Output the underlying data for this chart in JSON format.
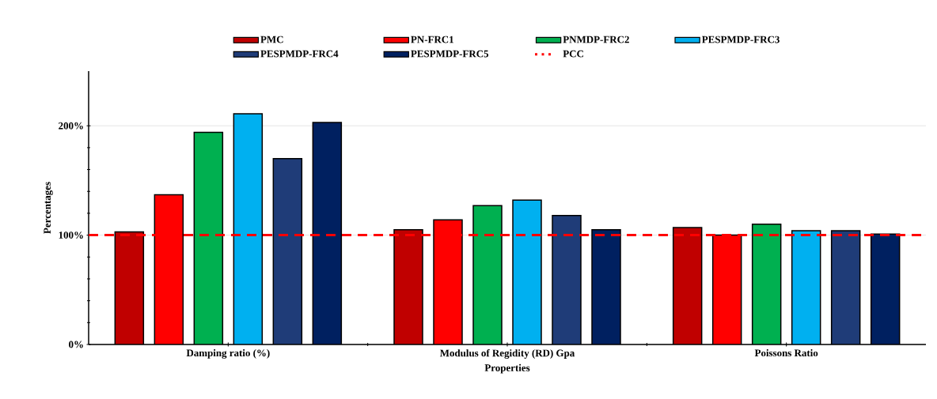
{
  "chart_data": {
    "type": "bar",
    "xlabel": "Properties",
    "ylabel": "Percentages",
    "categories": [
      "Damping ratio (%)",
      "Modulus of Regidity (RD) Gpa",
      "Poissons Ratio"
    ],
    "series": [
      {
        "name": "PMC",
        "color": "#c00000",
        "values": [
          103,
          105,
          107
        ]
      },
      {
        "name": "PN-FRC1",
        "color": "#ff0000",
        "values": [
          137,
          114,
          100
        ]
      },
      {
        "name": "PNMDP-FRC2",
        "color": "#00b050",
        "values": [
          194,
          127,
          110
        ]
      },
      {
        "name": "PESPMDP-FRC3",
        "color": "#00b0f0",
        "values": [
          211,
          132,
          104
        ]
      },
      {
        "name": "PESPMDP-FRC4",
        "color": "#1f3c78",
        "values": [
          170,
          118,
          104
        ]
      },
      {
        "name": "PESPMDP-FRC5",
        "color": "#002060",
        "values": [
          203,
          105,
          101
        ]
      }
    ],
    "ref_lines": [
      {
        "axis": "y",
        "value": 100,
        "label": "PCC",
        "color": "#ff0000",
        "line_style": "dashed"
      }
    ],
    "ylim": [
      0,
      250
    ],
    "yticks": [
      {
        "value": 0,
        "label": "0%"
      },
      {
        "value": 100,
        "label": "100%"
      },
      {
        "value": 200,
        "label": "200%"
      }
    ],
    "grid": "y",
    "legend": "top"
  }
}
